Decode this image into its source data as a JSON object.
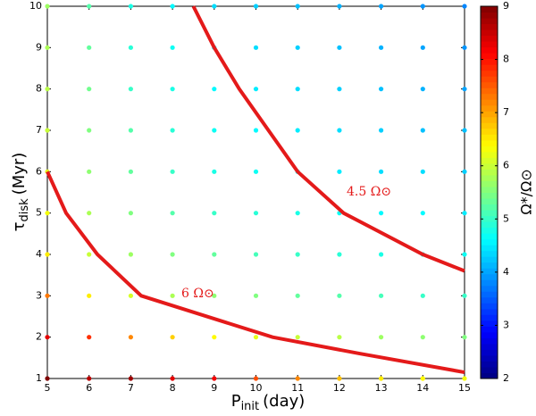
{
  "chart_data": {
    "type": "scatter",
    "xlabel": {
      "symbol": "P",
      "sub": "init",
      "unit": "(day)"
    },
    "ylabel": {
      "symbol": "τ",
      "sub": "disk",
      "unit": "(Myr)"
    },
    "x": [
      5,
      6,
      7,
      8,
      9,
      10,
      11,
      12,
      13,
      14,
      15,
      5,
      6,
      7,
      8,
      9,
      10,
      11,
      12,
      13,
      14,
      15,
      5,
      6,
      7,
      8,
      9,
      10,
      11,
      12,
      13,
      14,
      15,
      5,
      6,
      7,
      8,
      9,
      10,
      11,
      12,
      13,
      14,
      15,
      5,
      6,
      7,
      8,
      9,
      10,
      11,
      12,
      13,
      14,
      15,
      5,
      6,
      7,
      8,
      9,
      10,
      11,
      12,
      13,
      14,
      15,
      5,
      6,
      7,
      8,
      9,
      10,
      11,
      12,
      13,
      14,
      15,
      5,
      6,
      7,
      8,
      9,
      10,
      11,
      12,
      13,
      14,
      15,
      5,
      6,
      7,
      8,
      9,
      10,
      11,
      12,
      13,
      14,
      15,
      5,
      6,
      7,
      8,
      9,
      10,
      11,
      12,
      13,
      14,
      15
    ],
    "y": [
      1,
      1,
      1,
      1,
      1,
      1,
      1,
      1,
      1,
      1,
      1,
      2,
      2,
      2,
      2,
      2,
      2,
      2,
      2,
      2,
      2,
      2,
      3,
      3,
      3,
      3,
      3,
      3,
      3,
      3,
      3,
      3,
      3,
      4,
      4,
      4,
      4,
      4,
      4,
      4,
      4,
      4,
      4,
      4,
      5,
      5,
      5,
      5,
      5,
      5,
      5,
      5,
      5,
      5,
      5,
      6,
      6,
      6,
      6,
      6,
      6,
      6,
      6,
      6,
      6,
      6,
      7,
      7,
      7,
      7,
      7,
      7,
      7,
      7,
      7,
      7,
      7,
      8,
      8,
      8,
      8,
      8,
      8,
      8,
      8,
      8,
      8,
      8,
      9,
      9,
      9,
      9,
      9,
      9,
      9,
      9,
      9,
      9,
      9,
      10,
      10,
      10,
      10,
      10,
      10,
      10,
      10,
      10,
      10,
      10
    ],
    "values": [
      9.0,
      8.6,
      8.8,
      8.3,
      8.2,
      7.6,
      7.2,
      6.8,
      6.5,
      6.4,
      6.3,
      8.3,
      7.8,
      7.2,
      6.7,
      6.4,
      6.2,
      6.0,
      5.9,
      5.7,
      5.6,
      5.5,
      7.3,
      6.5,
      6.1,
      5.8,
      5.6,
      5.5,
      5.3,
      5.2,
      5.1,
      5.0,
      5.0,
      6.5,
      6.0,
      5.7,
      5.5,
      5.3,
      5.1,
      5.0,
      4.9,
      4.8,
      4.8,
      4.7,
      6.3,
      5.8,
      5.5,
      5.2,
      5.0,
      4.9,
      4.8,
      4.7,
      4.6,
      4.6,
      4.5,
      6.2,
      5.6,
      5.3,
      5.0,
      4.8,
      4.7,
      4.6,
      4.5,
      4.4,
      4.4,
      4.3,
      6.0,
      5.5,
      5.2,
      4.9,
      4.7,
      4.6,
      4.5,
      4.4,
      4.3,
      4.2,
      4.2,
      5.9,
      5.4,
      5.0,
      4.8,
      4.6,
      4.5,
      4.4,
      4.3,
      4.2,
      4.1,
      4.0,
      5.8,
      5.3,
      4.9,
      4.7,
      4.5,
      4.4,
      4.3,
      4.2,
      4.1,
      4.0,
      3.9,
      5.7,
      5.2,
      4.8,
      4.6,
      4.4,
      4.3,
      4.2,
      4.1,
      4.0,
      3.9,
      3.8
    ],
    "xlim": [
      5,
      15
    ],
    "xticks": [
      5,
      6,
      7,
      8,
      9,
      10,
      11,
      12,
      13,
      14,
      15
    ],
    "ylim": [
      1,
      10
    ],
    "yticks": [
      1,
      2,
      3,
      4,
      5,
      6,
      7,
      8,
      9,
      10
    ],
    "colormap": "jet",
    "colorbar": {
      "label": "Ω*/Ω⊙",
      "lim": [
        2,
        9
      ],
      "ticks": [
        2,
        3,
        4,
        5,
        6,
        7,
        8,
        9
      ]
    },
    "contours": [
      {
        "label": "4.5 Ω⊙",
        "color": "#e41a1a",
        "x": [
          8.5,
          9,
          9.6,
          10.3,
          11,
          12.1,
          14,
          15
        ],
        "y": [
          10,
          9,
          8,
          7,
          6,
          5,
          4,
          3.6
        ]
      },
      {
        "label": "6 Ω⊙",
        "color": "#e41a1a",
        "x": [
          5,
          5.45,
          6.2,
          7.25,
          10.4,
          12.5,
          15
        ],
        "y": [
          6,
          5,
          4,
          3,
          2,
          1.6,
          1.15
        ]
      }
    ]
  }
}
